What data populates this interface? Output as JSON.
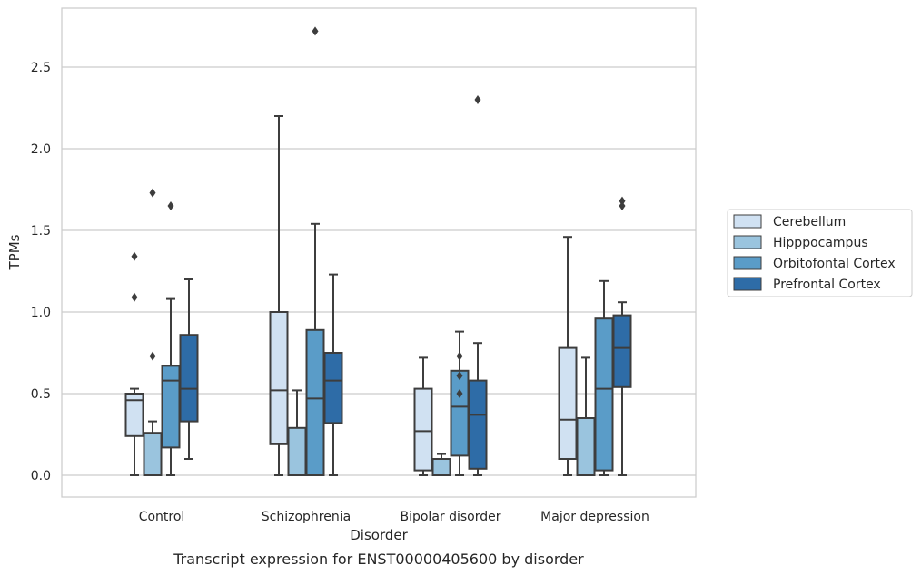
{
  "chart_data": {
    "type": "box",
    "xlabel": "Disorder",
    "ylabel": "TPMs",
    "caption": "Transcript expression for ENST00000405600 by disorder",
    "ylim": [
      -0.13,
      2.87
    ],
    "yticks": [
      0.0,
      0.5,
      1.0,
      1.5,
      2.0,
      2.5
    ],
    "ytick_labels": [
      "0.0",
      "0.5",
      "1.0",
      "1.5",
      "2.0",
      "2.5"
    ],
    "grid": "horizontal",
    "legend_position": "right",
    "categories": [
      "Control",
      "Schizophrenia",
      "Bipolar disorder",
      "Major depression"
    ],
    "series": [
      {
        "name": "Cerebellum",
        "color": "#d0e1f2",
        "boxes": [
          {
            "whislo": 0.0,
            "q1": 0.24,
            "med": 0.46,
            "q3": 0.5,
            "whishi": 0.53,
            "fliers": [
              1.34,
              1.09
            ]
          },
          {
            "whislo": 0.0,
            "q1": 0.19,
            "med": 0.52,
            "q3": 1.0,
            "whishi": 2.2,
            "fliers": []
          },
          {
            "whislo": 0.0,
            "q1": 0.03,
            "med": 0.27,
            "q3": 0.53,
            "whishi": 0.72,
            "fliers": []
          },
          {
            "whislo": 0.0,
            "q1": 0.1,
            "med": 0.34,
            "q3": 0.78,
            "whishi": 1.46,
            "fliers": []
          }
        ]
      },
      {
        "name": "Hipppocampus",
        "color": "#9ac4de",
        "boxes": [
          {
            "whislo": 0.0,
            "q1": 0.0,
            "med": 0.0,
            "q3": 0.26,
            "whishi": 0.33,
            "fliers": [
              1.73,
              0.73
            ]
          },
          {
            "whislo": 0.0,
            "q1": 0.0,
            "med": 0.0,
            "q3": 0.29,
            "whishi": 0.52,
            "fliers": []
          },
          {
            "whislo": 0.0,
            "q1": 0.0,
            "med": 0.0,
            "q3": 0.1,
            "whishi": 0.13,
            "fliers": []
          },
          {
            "whislo": 0.0,
            "q1": 0.0,
            "med": 0.0,
            "q3": 0.35,
            "whishi": 0.72,
            "fliers": []
          }
        ]
      },
      {
        "name": "Orbitofontal Cortex",
        "color": "#5a9cc8",
        "boxes": [
          {
            "whislo": 0.0,
            "q1": 0.17,
            "med": 0.58,
            "q3": 0.67,
            "whishi": 1.08,
            "fliers": [
              1.65
            ]
          },
          {
            "whislo": 0.0,
            "q1": 0.0,
            "med": 0.47,
            "q3": 0.89,
            "whishi": 1.54,
            "fliers": [
              2.72
            ]
          },
          {
            "whislo": 0.0,
            "q1": 0.12,
            "med": 0.42,
            "q3": 0.64,
            "whishi": 0.88,
            "fliers": [
              0.73,
              0.61,
              0.5
            ]
          },
          {
            "whislo": 0.0,
            "q1": 0.03,
            "med": 0.53,
            "q3": 0.96,
            "whishi": 1.19,
            "fliers": []
          }
        ]
      },
      {
        "name": "Prefrontal Cortex",
        "color": "#2e6ca7",
        "boxes": [
          {
            "whislo": 0.1,
            "q1": 0.33,
            "med": 0.53,
            "q3": 0.86,
            "whishi": 1.2,
            "fliers": []
          },
          {
            "whislo": 0.0,
            "q1": 0.32,
            "med": 0.58,
            "q3": 0.75,
            "whishi": 1.23,
            "fliers": []
          },
          {
            "whislo": 0.0,
            "q1": 0.04,
            "med": 0.37,
            "q3": 0.58,
            "whishi": 0.81,
            "fliers": [
              2.3
            ]
          },
          {
            "whislo": 0.0,
            "q1": 0.54,
            "med": 0.78,
            "q3": 0.98,
            "whishi": 1.06,
            "fliers": [
              1.68,
              1.65
            ]
          }
        ]
      }
    ]
  }
}
